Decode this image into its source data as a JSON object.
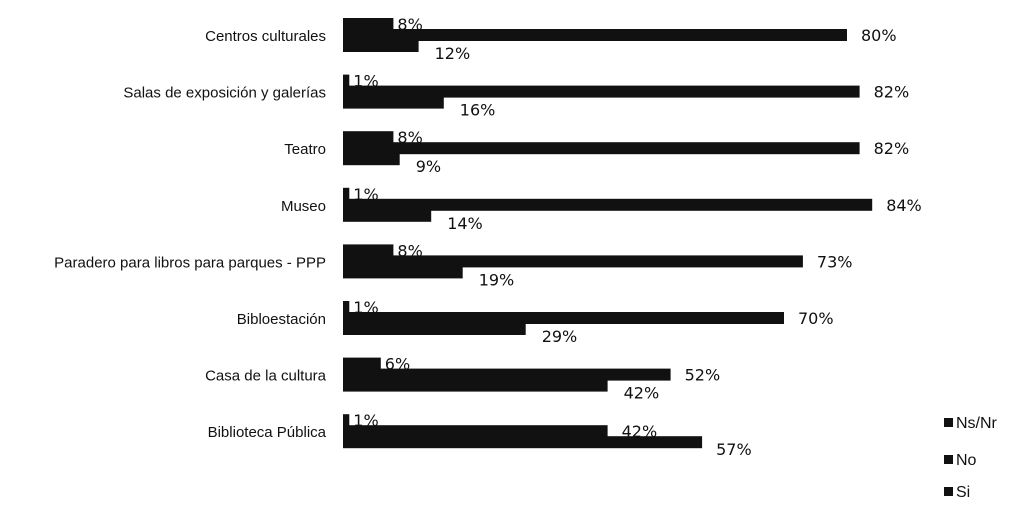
{
  "chart_data": {
    "type": "bar",
    "orientation": "horizontal",
    "categories": [
      "Centros culturales",
      "Salas de exposición y galerías",
      "Teatro",
      "Museo",
      "Paradero para libros para parques - PPP",
      "Bibloestación",
      "Casa de la cultura",
      "Biblioteca Pública"
    ],
    "series": [
      {
        "name": "Ns/Nr",
        "values": [
          8,
          1,
          8,
          1,
          8,
          1,
          6,
          1
        ],
        "labels": [
          "8%",
          "1%",
          "8%",
          "1%",
          "8%",
          "1%",
          "6%",
          "1%"
        ]
      },
      {
        "name": "No",
        "values": [
          80,
          82,
          82,
          84,
          73,
          70,
          52,
          42
        ],
        "labels": [
          "80%",
          "82%",
          "82%",
          "84%",
          "73%",
          "70%",
          "52%",
          "42%"
        ]
      },
      {
        "name": "Si",
        "values": [
          12,
          16,
          9,
          14,
          19,
          29,
          42,
          57
        ],
        "labels": [
          "12%",
          "16%",
          "9%",
          "14%",
          "19%",
          "29%",
          "42%",
          "57%"
        ]
      }
    ],
    "xlim": [
      0,
      100
    ],
    "legend_position": "right",
    "grid": false,
    "bar_color": "#111111"
  }
}
